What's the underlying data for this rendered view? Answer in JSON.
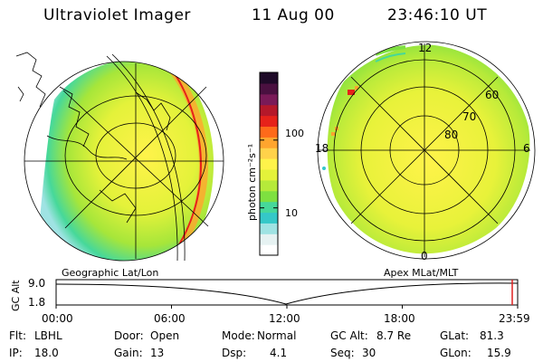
{
  "header": {
    "title": "Ultraviolet Imager",
    "date": "11 Aug 00",
    "time": "23:46:10 UT"
  },
  "colorbar": {
    "unit_label": "photon cm⁻²s⁻¹",
    "ticks": [
      {
        "value": 100,
        "label": "100"
      },
      {
        "value": 10,
        "label": "10"
      }
    ],
    "range": [
      2,
      1000
    ],
    "scale": "log",
    "colors": [
      "#ffffff",
      "#e6f2f2",
      "#9fe3e3",
      "#35c8c8",
      "#46d89a",
      "#7ee040",
      "#b6ea3a",
      "#e4f23a",
      "#fff34a",
      "#ffd24a",
      "#ffa52e",
      "#ff6a1a",
      "#e6221a",
      "#b5182a",
      "#7a1a58",
      "#4a1040",
      "#1e0a28"
    ]
  },
  "panels": {
    "left_label": "Geographic Lat/Lon",
    "right_label": "Apex MLat/MLT"
  },
  "polar": {
    "mlt_labels": {
      "top": "12",
      "left": "18",
      "right": "6",
      "bottom": "0"
    },
    "lat_labels": [
      "60",
      "70",
      "80"
    ]
  },
  "altitude_plot": {
    "ylabel": "GC Alt",
    "yticks": [
      "9.0",
      "1.8"
    ],
    "xticks": [
      "00:00",
      "06:00",
      "12:00",
      "18:00",
      "23:59"
    ],
    "current_time_marker_color": "#e02020"
  },
  "status": {
    "flt_label": "Flt:",
    "flt_value": "LBHL",
    "ip_label": "IP:",
    "ip_value": "18.0",
    "door_label": "Door:",
    "door_value": "Open",
    "gain_label": "Gain:",
    "gain_value": "13",
    "mode_label": "Mode:",
    "mode_value": "Normal",
    "dsp_label": "Dsp:",
    "dsp_value": "4.1",
    "gcalt_label": "GC Alt:",
    "gcalt_value": "8.7 Re",
    "seq_label": "Seq:",
    "seq_value": "30",
    "glat_label": "GLat:",
    "glat_value": "81.3",
    "glon_label": "GLon:",
    "glon_value": "15.9"
  }
}
